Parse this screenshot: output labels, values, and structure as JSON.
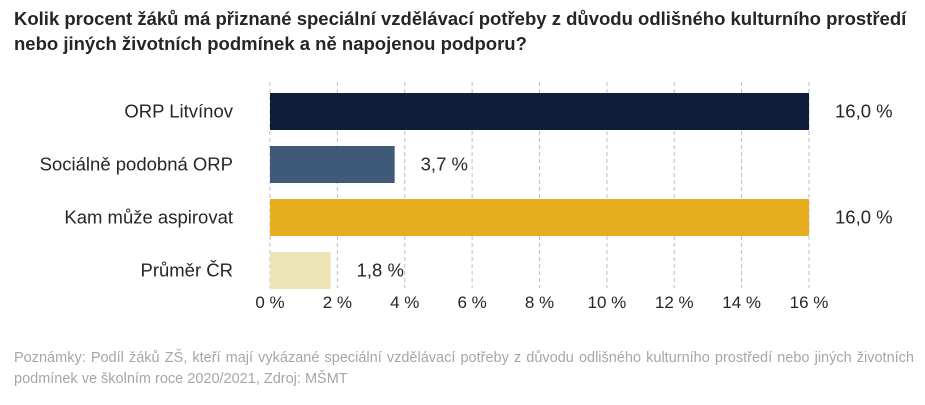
{
  "header": {
    "title": "Kolik procent žáků má přiznané speciální vzdělávací potřeby z důvodu odlišného kulturního prostředí nebo jiných životních podmínek a ně napojenou podporu?"
  },
  "notes": {
    "text": "Poznámky: Podíl žáků ZŠ, kteří mají vykázané speciální vzdělávací potřeby z důvodu odlišného kulturního prostředí nebo jiných životních podmínek ve školním roce 2020/2021, Zdroj: MŠMT"
  },
  "chart_data": {
    "type": "bar",
    "orientation": "horizontal",
    "categories": [
      "ORP Litvínov",
      "Sociálně podobná ORP",
      "Kam může aspirovat",
      "Průměr ČR"
    ],
    "values": [
      16.0,
      3.7,
      16.0,
      1.8
    ],
    "value_labels": [
      "16,0 %",
      "3,7 %",
      "16,0 %",
      "1,8 %"
    ],
    "colors": [
      "#0f1d3a",
      "#3f5a78",
      "#e6ae1f",
      "#ece3b6"
    ],
    "xlim": [
      0,
      16
    ],
    "x_ticks": [
      0,
      2,
      4,
      6,
      8,
      10,
      12,
      14,
      16
    ],
    "x_tick_labels": [
      "0 %",
      "2 %",
      "4 %",
      "6 %",
      "8 %",
      "10 %",
      "12 %",
      "14 %",
      "16 %"
    ],
    "grid": "vertical-dashed",
    "legend": "none"
  }
}
